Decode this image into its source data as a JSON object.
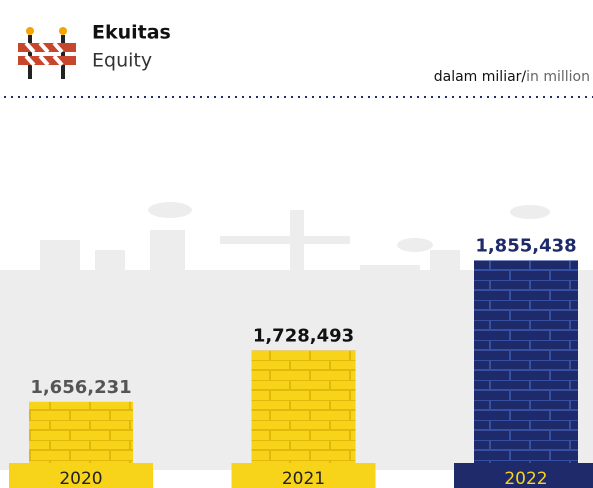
{
  "chart_data": {
    "type": "bar",
    "title": "Ekuitas",
    "subtitle": "Equity",
    "unit_local": "dalam miliar/",
    "unit_en": "in million",
    "categories": [
      "2020",
      "2021",
      "2022"
    ],
    "values": [
      1656231,
      1728493,
      1855438
    ],
    "value_labels": [
      "1,656,231",
      "1,728,493",
      "1,855,438"
    ],
    "colors": [
      "#f7d31a",
      "#f7d31a",
      "#1e2a6a"
    ],
    "label_colors": [
      "#555555",
      "#111111",
      "#1e2a6a"
    ],
    "ylim": [
      1570000,
      1870000
    ]
  }
}
